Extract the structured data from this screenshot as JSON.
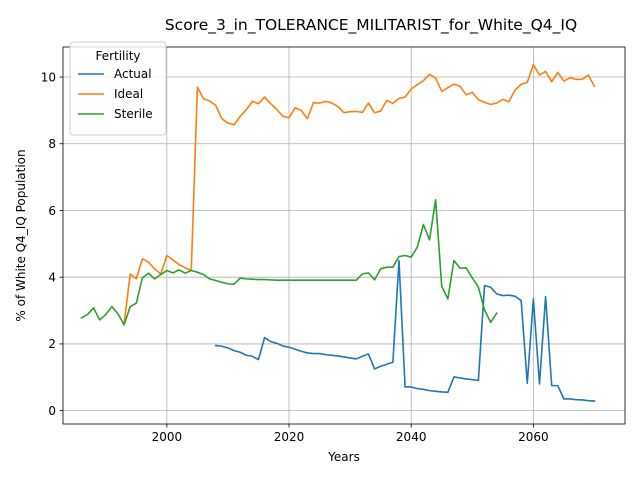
{
  "chart_data": {
    "type": "line",
    "title": "Score_3_in_TOLERANCE_MILITARIST_for_White_Q4_IQ",
    "xlabel": "Years",
    "ylabel": "% of White Q4_IQ Population",
    "xlim": [
      1983,
      2075
    ],
    "ylim": [
      -0.4,
      10.9
    ],
    "xticks": [
      2000,
      2020,
      2040,
      2060
    ],
    "yticks": [
      0,
      2,
      4,
      6,
      8,
      10
    ],
    "grid": true,
    "legend": {
      "title": "Fertility",
      "position": "upper left"
    },
    "series": [
      {
        "name": "Actual",
        "color": "#1f77b4",
        "x": [
          2008,
          2009,
          2010,
          2011,
          2012,
          2013,
          2014,
          2015,
          2016,
          2017,
          2018,
          2019,
          2020,
          2021,
          2022,
          2023,
          2024,
          2025,
          2026,
          2027,
          2028,
          2029,
          2030,
          2031,
          2032,
          2033,
          2034,
          2035,
          2036,
          2037,
          2038,
          2039,
          2040,
          2041,
          2042,
          2043,
          2044,
          2045,
          2046,
          2047,
          2048,
          2049,
          2050,
          2051,
          2052,
          2053,
          2054,
          2055,
          2056,
          2057,
          2058,
          2059,
          2060,
          2061,
          2062,
          2063,
          2064,
          2065,
          2066,
          2067,
          2068,
          2069,
          2070
        ],
        "y": [
          1.95,
          1.93,
          1.88,
          1.8,
          1.75,
          1.66,
          1.63,
          1.53,
          2.19,
          2.07,
          2.02,
          1.94,
          1.9,
          1.84,
          1.78,
          1.73,
          1.71,
          1.71,
          1.68,
          1.66,
          1.64,
          1.61,
          1.58,
          1.55,
          1.63,
          1.7,
          1.25,
          1.33,
          1.39,
          1.45,
          4.5,
          0.71,
          0.71,
          0.66,
          0.64,
          0.6,
          0.58,
          0.56,
          0.55,
          1.01,
          0.98,
          0.95,
          0.93,
          0.91,
          3.75,
          3.7,
          3.5,
          3.45,
          3.46,
          3.43,
          3.3,
          0.82,
          3.35,
          0.8,
          3.42,
          0.75,
          0.75,
          0.35,
          0.35,
          0.33,
          0.32,
          0.3,
          0.29
        ]
      },
      {
        "name": "Ideal",
        "color": "#ff7f0e",
        "x": [
          1993,
          1994,
          1995,
          1996,
          1997,
          1998,
          1999,
          2000,
          2001,
          2002,
          2003,
          2004,
          2005,
          2006,
          2007,
          2008,
          2009,
          2010,
          2011,
          2012,
          2013,
          2014,
          2015,
          2016,
          2017,
          2018,
          2019,
          2020,
          2021,
          2022,
          2023,
          2024,
          2025,
          2026,
          2027,
          2028,
          2029,
          2030,
          2031,
          2032,
          2033,
          2034,
          2035,
          2036,
          2037,
          2038,
          2039,
          2040,
          2041,
          2042,
          2043,
          2044,
          2045,
          2046,
          2047,
          2048,
          2049,
          2050,
          2051,
          2052,
          2053,
          2054,
          2055,
          2056,
          2057,
          2058,
          2059,
          2060,
          2061,
          2062,
          2063,
          2064,
          2065,
          2066,
          2067,
          2068,
          2069,
          2070
        ],
        "y": [
          2.6,
          4.1,
          3.95,
          4.55,
          4.45,
          4.25,
          4.1,
          4.65,
          4.52,
          4.38,
          4.28,
          4.2,
          9.7,
          9.35,
          9.28,
          9.15,
          8.75,
          8.62,
          8.57,
          8.82,
          9.02,
          9.27,
          9.2,
          9.4,
          9.2,
          9.03,
          8.82,
          8.78,
          9.08,
          9.0,
          8.75,
          9.23,
          9.22,
          9.27,
          9.22,
          9.12,
          8.93,
          8.96,
          8.97,
          8.94,
          9.22,
          8.93,
          8.98,
          9.3,
          9.21,
          9.36,
          9.4,
          9.64,
          9.77,
          9.89,
          10.08,
          9.97,
          9.57,
          9.68,
          9.79,
          9.72,
          9.47,
          9.54,
          9.32,
          9.24,
          9.18,
          9.22,
          9.33,
          9.26,
          9.61,
          9.78,
          9.84,
          10.37,
          10.06,
          10.17,
          9.86,
          10.14,
          9.88,
          9.98,
          9.93,
          9.93,
          10.06,
          9.72
        ]
      },
      {
        "name": "Sterile",
        "color": "#2ca02c",
        "x": [
          1986,
          1987,
          1988,
          1989,
          1990,
          1991,
          1992,
          1993,
          1994,
          1995,
          1996,
          1997,
          1998,
          1999,
          2000,
          2001,
          2002,
          2003,
          2004,
          2005,
          2006,
          2007,
          2008,
          2009,
          2010,
          2011,
          2012,
          2013,
          2014,
          2015,
          2016,
          2017,
          2018,
          2019,
          2020,
          2021,
          2022,
          2023,
          2024,
          2025,
          2026,
          2027,
          2028,
          2029,
          2030,
          2031,
          2032,
          2033,
          2034,
          2035,
          2036,
          2037,
          2038,
          2039,
          2040,
          2041,
          2042,
          2043,
          2044,
          2045,
          2046,
          2047,
          2048,
          2049,
          2050,
          2051,
          2052,
          2053,
          2054
        ],
        "y": [
          2.78,
          2.88,
          3.08,
          2.72,
          2.88,
          3.12,
          2.9,
          2.57,
          3.12,
          3.22,
          3.98,
          4.12,
          3.95,
          4.08,
          4.2,
          4.13,
          4.22,
          4.12,
          4.2,
          4.15,
          4.08,
          3.95,
          3.9,
          3.85,
          3.8,
          3.79,
          3.97,
          3.95,
          3.94,
          3.93,
          3.93,
          3.92,
          3.91,
          3.91,
          3.91,
          3.91,
          3.91,
          3.91,
          3.91,
          3.91,
          3.91,
          3.91,
          3.91,
          3.91,
          3.91,
          3.91,
          4.1,
          4.13,
          3.92,
          4.25,
          4.3,
          4.3,
          4.62,
          4.65,
          4.6,
          4.9,
          5.58,
          5.12,
          6.32,
          3.72,
          3.35,
          4.5,
          4.27,
          4.28,
          3.98,
          3.7,
          3.02,
          2.65,
          2.92
        ]
      }
    ]
  }
}
